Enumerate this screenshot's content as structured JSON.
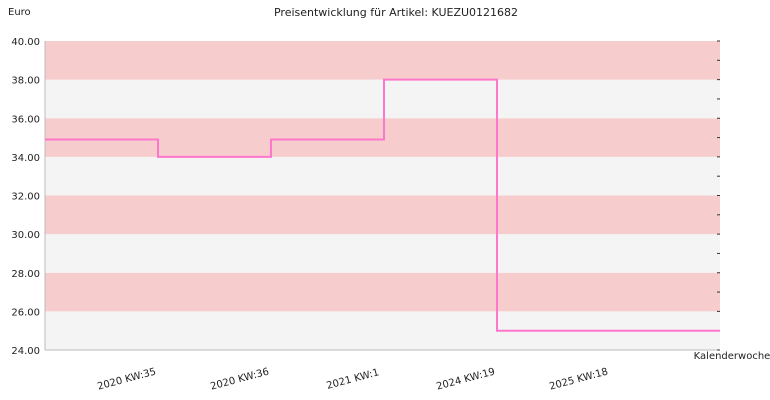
{
  "chart_data": {
    "type": "line",
    "step": true,
    "title": "Preisentwicklung für Artikel: KUEZU0121682",
    "ylabel": "Euro",
    "xlabel": "Kalenderwoche",
    "ylim": [
      24,
      40
    ],
    "yticks": [
      "24.00",
      "26.00",
      "28.00",
      "30.00",
      "32.00",
      "34.00",
      "36.00",
      "38.00",
      "40.00"
    ],
    "categories": [
      "2020 KW:35",
      "2020 KW:36",
      "2021 KW:1",
      "2024 KW:19",
      "2025 KW:18"
    ],
    "series": [
      {
        "values": [
          34.9,
          34.0,
          34.9,
          38.0,
          25.0
        ]
      }
    ],
    "grid": true,
    "colors": {
      "band_light": "#f4f4f4",
      "band_dark": "#f7cccc",
      "line": "#ff77cc",
      "axis": "#bbbbbb"
    }
  }
}
